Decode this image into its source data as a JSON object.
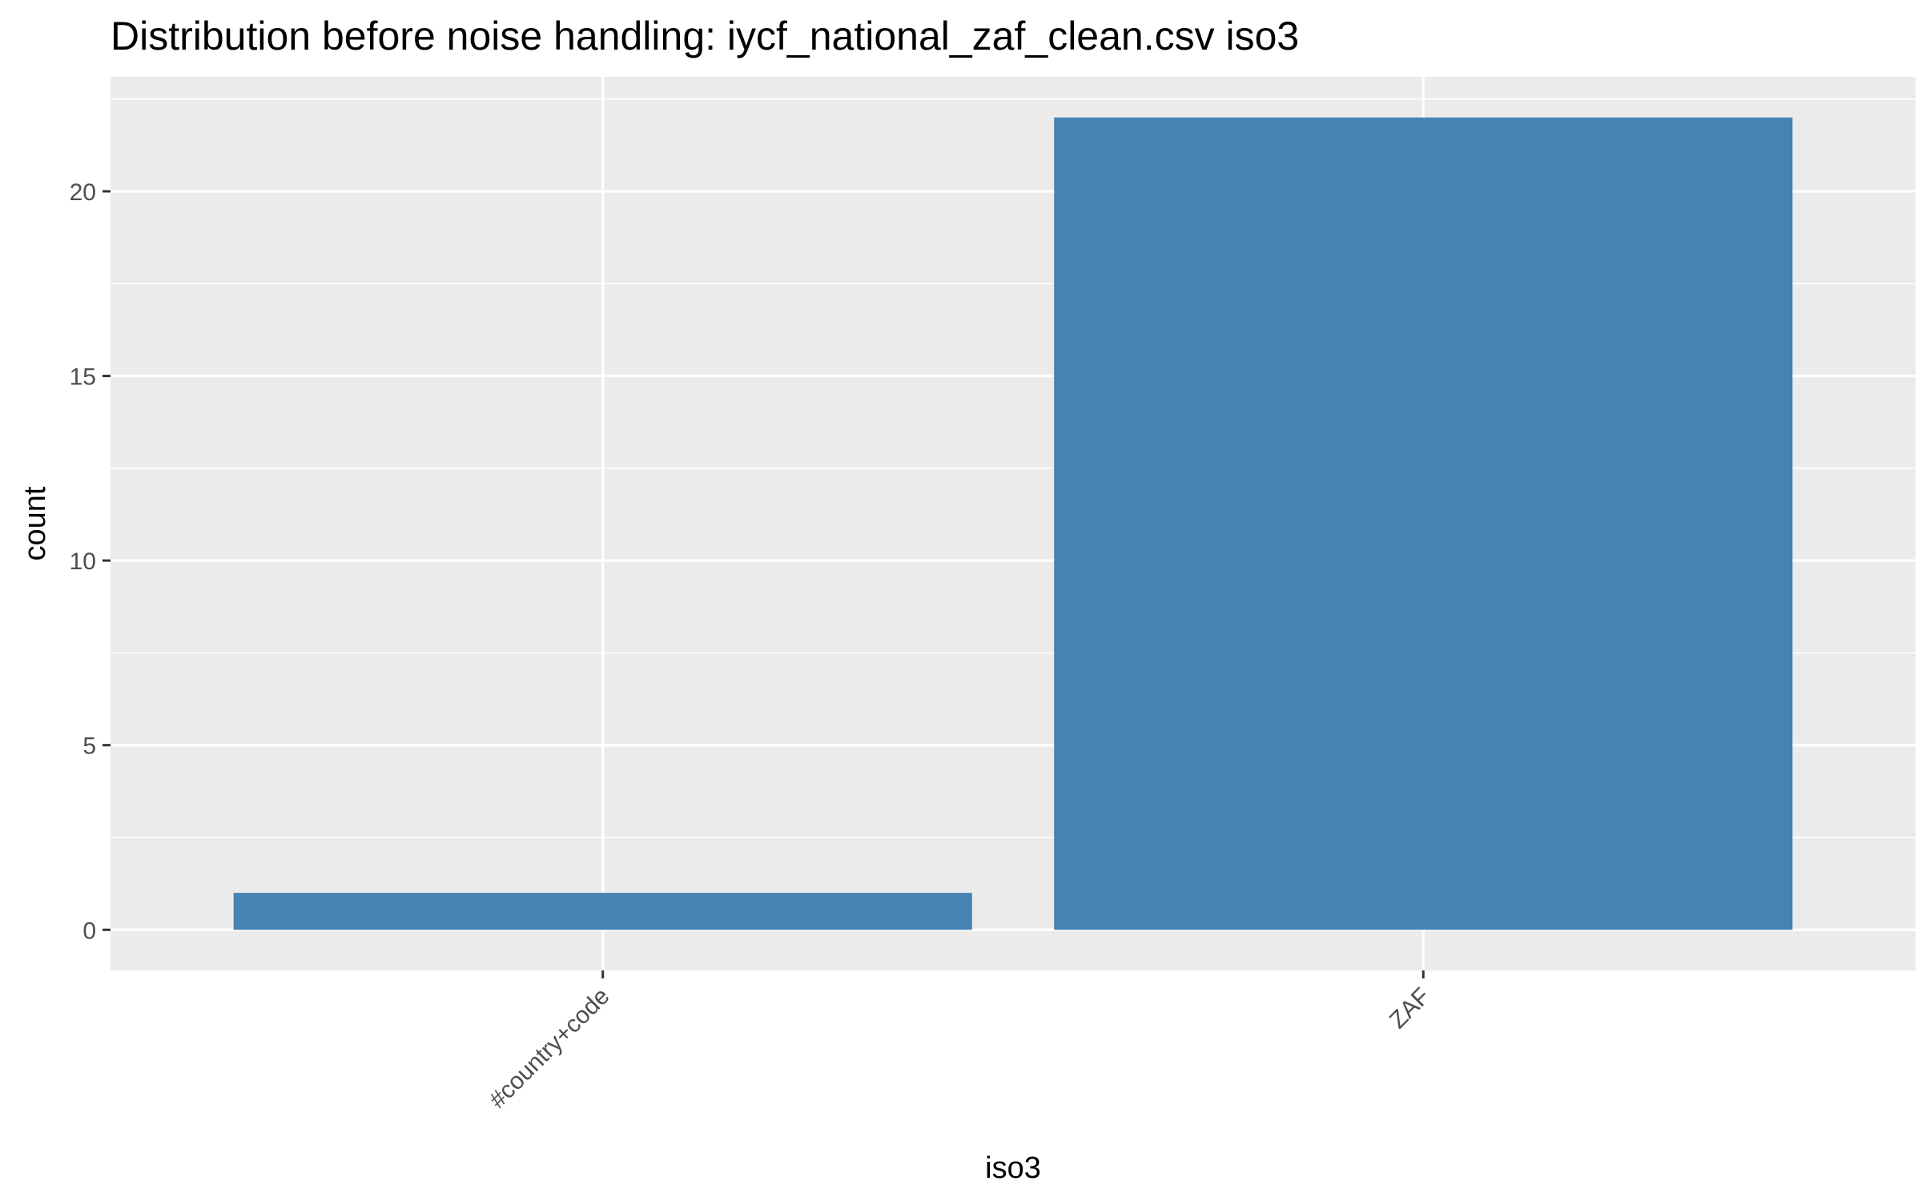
{
  "chart_data": {
    "type": "bar",
    "title": "Distribution before noise handling: iycf_national_zaf_clean.csv iso3",
    "xlabel": "iso3",
    "ylabel": "count",
    "categories": [
      "#country+code",
      "ZAF"
    ],
    "values": [
      1,
      22
    ],
    "ylim": [
      -1.1,
      23.1
    ],
    "yticks": [
      "0",
      "5",
      "10",
      "15",
      "20"
    ],
    "grid": true,
    "legend": "none",
    "colors": {
      "bar": "#4682B4",
      "panel": "#EBEBEB",
      "grid": "#FFFFFF",
      "tick": "#333333"
    }
  }
}
